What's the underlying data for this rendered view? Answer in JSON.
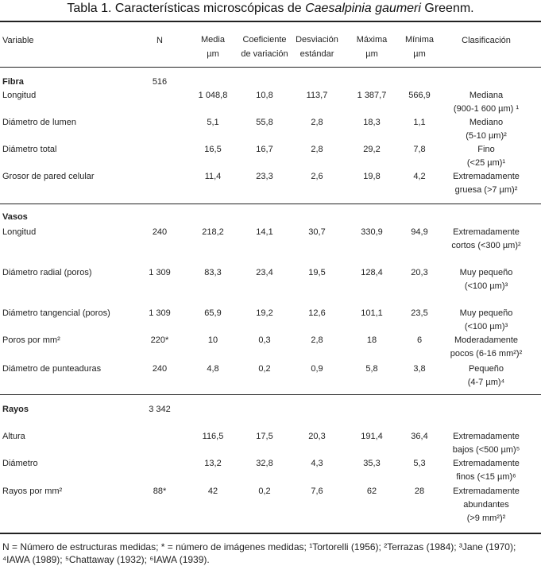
{
  "title": {
    "prefix": "Tabla 1. Características microscópicas de ",
    "species": "Caesalpinia gaumeri",
    "suffix": " Greenm."
  },
  "headers": {
    "variable": "Variable",
    "n": "N",
    "media": [
      "Media",
      "µm"
    ],
    "coef": [
      "Coeficiente",
      "de variación"
    ],
    "desv": [
      "Desviación",
      "estándar"
    ],
    "max": [
      "Máxima",
      "µm"
    ],
    "min": [
      "Mínima",
      "µm"
    ],
    "clasif": "Clasificación"
  },
  "sections": [
    {
      "name": "Fibra",
      "n": "516",
      "rows": [
        {
          "variable": "Longitud",
          "n": "",
          "media": "1 048,8",
          "coef": "10,8",
          "desv": "113,7",
          "max": "1 387,7",
          "min": "566,9",
          "clasif": [
            "Mediana",
            "(900-1 600 µm) ¹"
          ]
        },
        {
          "variable": "Diámetro de lumen",
          "n": "",
          "media": "5,1",
          "coef": "55,8",
          "desv": "2,8",
          "max": "18,3",
          "min": "1,1",
          "clasif": [
            "Mediano",
            "(5-10 µm)²"
          ]
        },
        {
          "variable": "Diámetro total",
          "n": "",
          "media": "16,5",
          "coef": "16,7",
          "desv": "2,8",
          "max": "29,2",
          "min": "7,8",
          "clasif": [
            "Fino",
            "(<25 µm)¹"
          ]
        },
        {
          "variable": "Grosor de pared celular",
          "n": "",
          "media": "11,4",
          "coef": "23,3",
          "desv": "2,6",
          "max": "19,8",
          "min": "4,2",
          "clasif": [
            "Extremadamente",
            "gruesa (>7 µm)²"
          ]
        }
      ]
    },
    {
      "name": "Vasos",
      "n": "",
      "rows": [
        {
          "variable": "Longitud",
          "n": "240",
          "media": "218,2",
          "coef": "14,1",
          "desv": "30,7",
          "max": "330,9",
          "min": "94,9",
          "clasif": [
            "Extremadamente",
            "cortos (<300 µm)²"
          ]
        },
        {
          "variable": "Diámetro radial (poros)",
          "n": "1 309",
          "media": "83,3",
          "coef": "23,4",
          "desv": "19,5",
          "max": "128,4",
          "min": "20,3",
          "clasif": [
            "Muy pequeño",
            "(<100 µm)³"
          ]
        },
        {
          "variable": "Diámetro tangencial (poros)",
          "n": "1 309",
          "media": "65,9",
          "coef": "19,2",
          "desv": "12,6",
          "max": "101,1",
          "min": "23,5",
          "clasif": [
            "Muy pequeño",
            "(<100 µm)³"
          ]
        },
        {
          "variable": "Poros por mm²",
          "n": "220*",
          "media": "10",
          "coef": "0,3",
          "desv": "2,8",
          "max": "18",
          "min": "6",
          "clasif": [
            "Moderadamente",
            "pocos (6-16 mm²)²"
          ]
        },
        {
          "variable": "Diámetro de punteaduras",
          "n": "240",
          "media": "4,8",
          "coef": "0,2",
          "desv": "0,9",
          "max": "5,8",
          "min": "3,8",
          "clasif": [
            "Pequeño",
            "(4-7 µm)⁴"
          ]
        }
      ]
    },
    {
      "name": "Rayos",
      "n": "3 342",
      "rows": [
        {
          "variable": "Altura",
          "n": "",
          "media": "116,5",
          "coef": "17,5",
          "desv": "20,3",
          "max": "191,4",
          "min": "36,4",
          "clasif": [
            "Extremadamente",
            "bajos (<500 µm)⁵"
          ]
        },
        {
          "variable": "Diámetro",
          "n": "",
          "media": "13,2",
          "coef": "32,8",
          "desv": "4,3",
          "max": "35,3",
          "min": "5,3",
          "clasif": [
            "Extremadamente",
            "finos (<15 µm)⁶"
          ]
        },
        {
          "variable": "Rayos por mm²",
          "n": "88*",
          "media": "42",
          "coef": "0,2",
          "desv": "7,6",
          "max": "62",
          "min": "28",
          "clasif": [
            "Extremadamente",
            "abundantes",
            "(>9 mm²)²"
          ]
        }
      ]
    }
  ],
  "footnote": "N = Número de estructuras medidas; * = número de imágenes medidas; ¹Tortorelli (1956); ²Terrazas (1984); ³Jane (1970); ⁴IAWA (1989); ⁵Chattaway (1932); ⁶IAWA (1939)."
}
